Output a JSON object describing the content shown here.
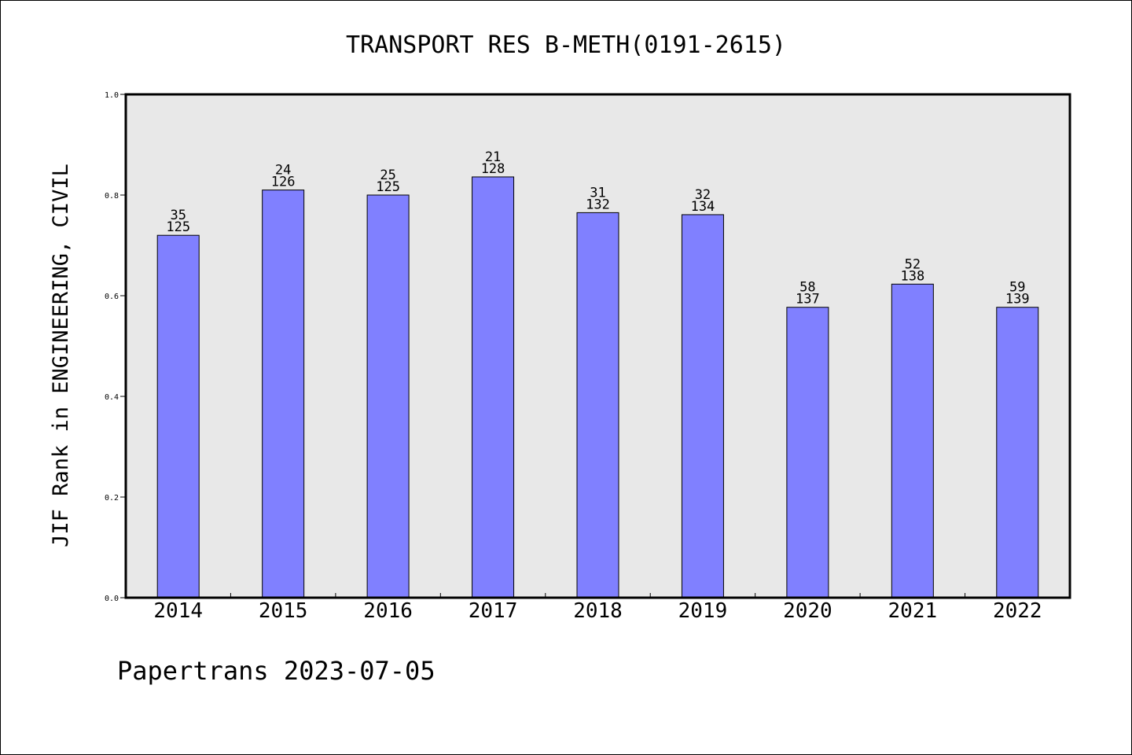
{
  "chart_data": {
    "type": "bar",
    "title": "TRANSPORT RES B-METH(0191-2615)",
    "ylabel": "JIF Rank in ENGINEERING, CIVIL",
    "xlabel": "",
    "categories": [
      "2014",
      "2015",
      "2016",
      "2017",
      "2018",
      "2019",
      "2020",
      "2021",
      "2022"
    ],
    "values": [
      0.72,
      0.81,
      0.8,
      0.836,
      0.765,
      0.761,
      0.577,
      0.623,
      0.577
    ],
    "rank_labels": [
      "35",
      "24",
      "25",
      "21",
      "31",
      "32",
      "58",
      "52",
      "59"
    ],
    "total_labels": [
      "125",
      "126",
      "125",
      "128",
      "132",
      "134",
      "137",
      "138",
      "139"
    ],
    "ylim": [
      0,
      1.0
    ],
    "yticks": [
      "0.0",
      "0.2",
      "0.4",
      "0.6",
      "0.8",
      "1.0"
    ],
    "grid": false,
    "colors": {
      "bar": "#8080ff",
      "plot_background": "#e8e8e8",
      "axis": "#000000"
    }
  },
  "footer": "Papertrans 2023-07-05"
}
